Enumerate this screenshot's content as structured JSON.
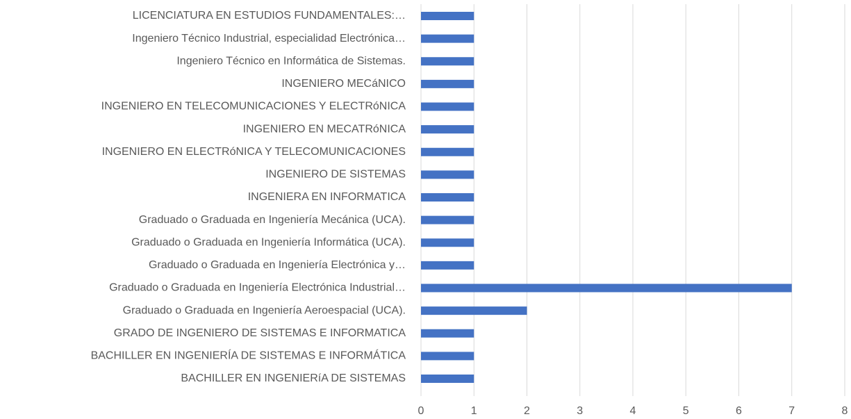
{
  "chart_data": {
    "type": "barh",
    "categories": [
      "LICENCIATURA EN ESTUDIOS FUNDAMENTALES:…",
      "Ingeniero Técnico Industrial, especialidad Electrónica…",
      "Ingeniero Técnico en Informática de Sistemas.",
      "INGENIERO MECáNICO",
      "INGENIERO EN TELECOMUNICACIONES Y ELECTRóNICA",
      "INGENIERO EN MECATRóNICA",
      "INGENIERO EN ELECTRóNICA Y TELECOMUNICACIONES",
      "INGENIERO DE SISTEMAS",
      "INGENIERA EN INFORMATICA",
      "Graduado o Graduada en Ingeniería Mecánica (UCA).",
      "Graduado o Graduada en Ingeniería Informática (UCA).",
      "Graduado o Graduada en Ingeniería Electrónica y…",
      "Graduado o Graduada en Ingeniería Electrónica Industrial…",
      "Graduado o Graduada en Ingeniería Aeroespacial (UCA).",
      "GRADO DE INGENIERO DE SISTEMAS E INFORMATICA",
      "BACHILLER EN INGENIERÍA DE SISTEMAS E INFORMÁTICA",
      "BACHILLER EN INGENIERíA DE SISTEMAS"
    ],
    "values": [
      1,
      1,
      1,
      1,
      1,
      1,
      1,
      1,
      1,
      1,
      1,
      1,
      7,
      2,
      1,
      1,
      1
    ],
    "color": "#4472c4",
    "xlim": [
      0,
      8
    ],
    "xticks": [
      0,
      1,
      2,
      3,
      4,
      5,
      6,
      7,
      8
    ],
    "grid": true
  }
}
